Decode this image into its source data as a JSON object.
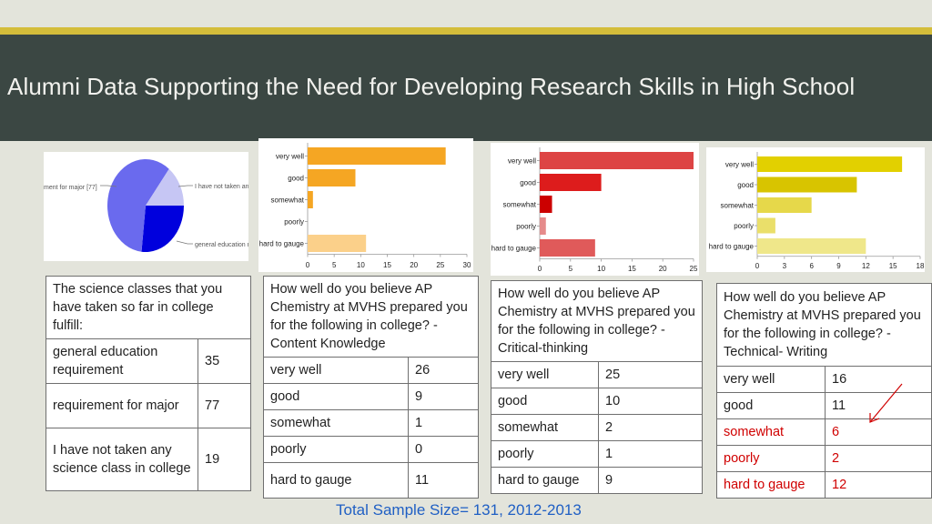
{
  "title": "Alumni Data Supporting the Need for Developing Research Skills in High School",
  "footer": "Total Sample Size= 131, 2012-2013",
  "chart_data": [
    {
      "type": "pie",
      "categories": [
        "general education requirement",
        "requirement for major [77]",
        "I have not taken any science class in college"
      ],
      "visible_labels": [
        "ment for major [77]",
        "I have not taken an",
        "general education r"
      ],
      "values": [
        35,
        77,
        19
      ],
      "colors": [
        "#0000dd",
        "#6a6aee",
        "#c6c6f4"
      ]
    },
    {
      "type": "bar",
      "orientation": "horizontal",
      "categories": [
        "very well",
        "good",
        "somewhat",
        "poorly",
        "hard to gauge"
      ],
      "values": [
        26,
        9,
        1,
        0,
        11
      ],
      "xlim": [
        0,
        30
      ],
      "ticks": [
        0,
        5,
        10,
        15,
        20,
        25,
        30
      ],
      "colors": [
        "#f5a623",
        "#f5a623",
        "#f5a623",
        "#f5a623",
        "#fbd08a"
      ]
    },
    {
      "type": "bar",
      "orientation": "horizontal",
      "categories": [
        "very well",
        "good",
        "somewhat",
        "poorly",
        "hard to gauge"
      ],
      "values": [
        25,
        10,
        2,
        1,
        9
      ],
      "xlim": [
        0,
        25
      ],
      "ticks": [
        0,
        5,
        10,
        15,
        20,
        25
      ],
      "colors": [
        "#dd4444",
        "#dd1c1c",
        "#cc0000",
        "#e58b8b",
        "#e05a5a"
      ]
    },
    {
      "type": "bar",
      "orientation": "horizontal",
      "categories": [
        "very well",
        "good",
        "somewhat",
        "poorly",
        "hard to gauge"
      ],
      "values": [
        16,
        11,
        6,
        2,
        12
      ],
      "xlim": [
        0,
        18
      ],
      "ticks": [
        0,
        3,
        6,
        9,
        12,
        15,
        18
      ],
      "colors": [
        "#e2d000",
        "#d8c400",
        "#e6d84a",
        "#eadf6a",
        "#efe78a"
      ]
    }
  ],
  "tables": {
    "t1": {
      "header": "The science classes that you have taken so far in college fulfill:",
      "rows": [
        [
          "general education requirement",
          "35"
        ],
        [
          "requirement for major",
          "77"
        ],
        [
          "I have not taken any science class in college",
          "19"
        ]
      ]
    },
    "t2": {
      "header": "How well do you believe AP Chemistry at MVHS prepared you for the following in college? - Content Knowledge",
      "rows": [
        [
          "very well",
          "26"
        ],
        [
          "good",
          "9"
        ],
        [
          "somewhat",
          "1"
        ],
        [
          "poorly",
          "0"
        ],
        [
          "hard to gauge",
          "11"
        ]
      ]
    },
    "t3": {
      "header": "How well do you believe AP Chemistry at MVHS prepared you for the following in college? - Critical-thinking",
      "rows": [
        [
          "very well",
          "25"
        ],
        [
          "good",
          "10"
        ],
        [
          "somewhat",
          "2"
        ],
        [
          "poorly",
          "1"
        ],
        [
          "hard to gauge",
          "9"
        ]
      ]
    },
    "t4": {
      "header": "How well do you believe AP Chemistry at MVHS prepared you for the following in college? - Technical- Writing",
      "rows": [
        [
          "very well",
          "16"
        ],
        [
          "good",
          "11"
        ],
        [
          "somewhat",
          "6"
        ],
        [
          "poorly",
          "2"
        ],
        [
          "hard to gauge",
          "12"
        ]
      ]
    }
  },
  "highlight_color": "#d00000"
}
